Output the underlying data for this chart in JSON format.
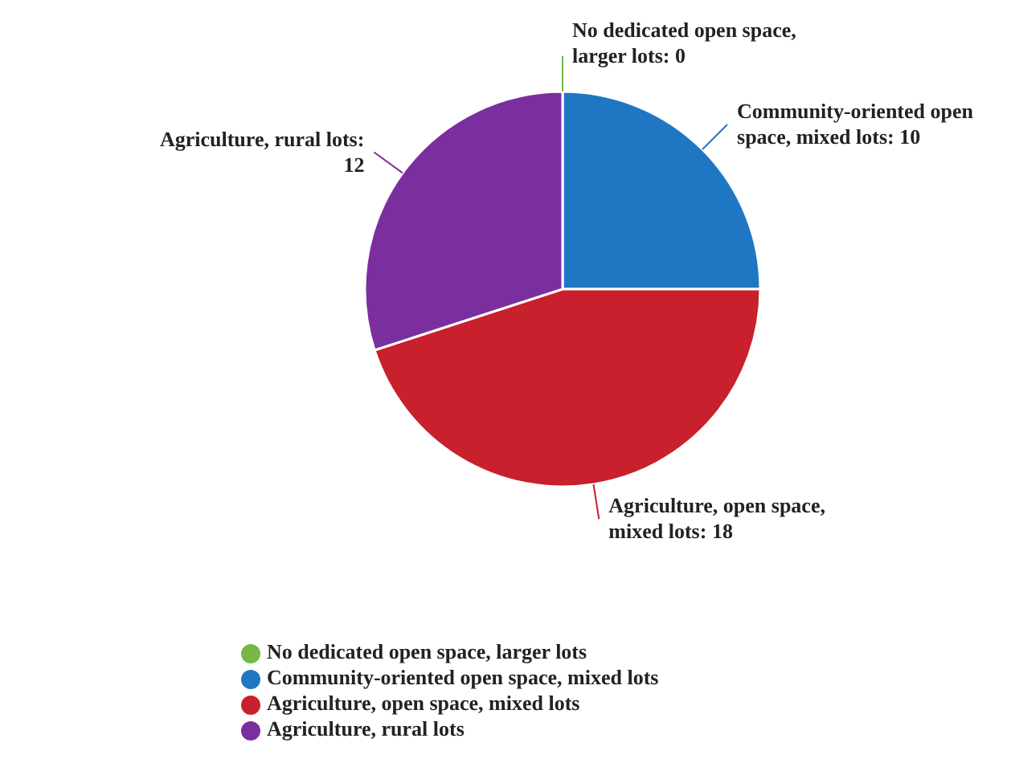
{
  "chart_data": {
    "type": "pie",
    "categories": [
      "No dedicated open space, larger lots",
      "Community-oriented open space, mixed lots",
      "Agriculture, open space, mixed lots",
      "Agriculture, rural lots"
    ],
    "values": [
      0,
      10,
      18,
      12
    ],
    "colors": [
      "#76b843",
      "#1f77c4",
      "#c8202c",
      "#7b2f9f"
    ],
    "value_labels": [
      "No dedicated open space, larger lots: 0",
      "Community-oriented open space, mixed lots: 10",
      "Agriculture, open space, mixed lots: 18",
      "Agriculture, rural lots: 12"
    ],
    "legend": "bottom"
  }
}
